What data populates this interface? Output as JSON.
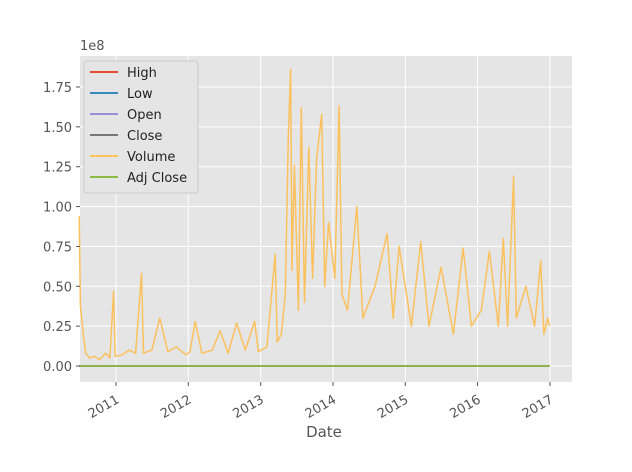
{
  "chart_data": {
    "type": "line",
    "title": "",
    "xlabel": "Date",
    "ylabel": "",
    "y_offset_label": "1e8",
    "x_range": [
      "2010-06-29",
      "2016-12-30"
    ],
    "ylim": [
      -0.1,
      1.95
    ],
    "y_scale_note": "values in units of 1e8",
    "x_ticks": [
      "2011",
      "2012",
      "2013",
      "2014",
      "2015",
      "2016",
      "2017"
    ],
    "y_ticks": [
      "0.00",
      "0.25",
      "0.50",
      "0.75",
      "1.00",
      "1.25",
      "1.50",
      "1.75"
    ],
    "grid": true,
    "legend_position": "upper-left",
    "series": [
      {
        "name": "High",
        "color": "#E24A33",
        "values": "near zero across range (price series)"
      },
      {
        "name": "Low",
        "color": "#348ABD",
        "values": "near zero across range"
      },
      {
        "name": "Open",
        "color": "#988ED5",
        "values": "near zero across range"
      },
      {
        "name": "Close",
        "color": "#777777",
        "values": "near zero across range"
      },
      {
        "name": "Volume",
        "color": "#FBC15E",
        "points": [
          [
            "2010-06-29",
            0.94
          ],
          [
            "2010-07-05",
            0.38
          ],
          [
            "2010-07-12",
            0.3
          ],
          [
            "2010-07-20",
            0.2
          ],
          [
            "2010-08-01",
            0.08
          ],
          [
            "2010-08-20",
            0.05
          ],
          [
            "2010-09-15",
            0.06
          ],
          [
            "2010-10-10",
            0.04
          ],
          [
            "2010-11-10",
            0.08
          ],
          [
            "2010-12-01",
            0.05
          ],
          [
            "2010-12-20",
            0.47
          ],
          [
            "2010-12-28",
            0.06
          ],
          [
            "2011-02-01",
            0.07
          ],
          [
            "2011-03-10",
            0.1
          ],
          [
            "2011-04-10",
            0.08
          ],
          [
            "2011-05-10",
            0.58
          ],
          [
            "2011-05-20",
            0.08
          ],
          [
            "2011-07-01",
            0.1
          ],
          [
            "2011-08-10",
            0.3
          ],
          [
            "2011-09-20",
            0.09
          ],
          [
            "2011-11-01",
            0.12
          ],
          [
            "2011-12-20",
            0.07
          ],
          [
            "2012-01-10",
            0.09
          ],
          [
            "2012-02-05",
            0.28
          ],
          [
            "2012-03-10",
            0.08
          ],
          [
            "2012-05-01",
            0.1
          ],
          [
            "2012-06-10",
            0.22
          ],
          [
            "2012-07-20",
            0.08
          ],
          [
            "2012-09-01",
            0.27
          ],
          [
            "2012-10-15",
            0.1
          ],
          [
            "2012-12-01",
            0.28
          ],
          [
            "2012-12-20",
            0.09
          ],
          [
            "2013-02-01",
            0.12
          ],
          [
            "2013-03-15",
            0.7
          ],
          [
            "2013-03-25",
            0.15
          ],
          [
            "2013-04-15",
            0.2
          ],
          [
            "2013-05-05",
            0.45
          ],
          [
            "2013-05-20",
            1.44
          ],
          [
            "2013-06-01",
            1.86
          ],
          [
            "2013-06-08",
            0.6
          ],
          [
            "2013-06-20",
            1.26
          ],
          [
            "2013-07-10",
            0.35
          ],
          [
            "2013-07-25",
            1.62
          ],
          [
            "2013-08-10",
            0.4
          ],
          [
            "2013-09-01",
            1.37
          ],
          [
            "2013-09-20",
            0.55
          ],
          [
            "2013-10-10",
            1.3
          ],
          [
            "2013-11-05",
            1.58
          ],
          [
            "2013-11-20",
            0.5
          ],
          [
            "2013-12-10",
            0.9
          ],
          [
            "2014-01-10",
            0.55
          ],
          [
            "2014-02-01",
            1.63
          ],
          [
            "2014-02-15",
            0.45
          ],
          [
            "2014-03-15",
            0.35
          ],
          [
            "2014-05-01",
            1.0
          ],
          [
            "2014-06-01",
            0.3
          ],
          [
            "2014-08-01",
            0.5
          ],
          [
            "2014-10-01",
            0.83
          ],
          [
            "2014-11-01",
            0.3
          ],
          [
            "2014-12-01",
            0.75
          ],
          [
            "2015-02-01",
            0.25
          ],
          [
            "2015-03-20",
            0.78
          ],
          [
            "2015-05-01",
            0.25
          ],
          [
            "2015-07-01",
            0.62
          ],
          [
            "2015-09-01",
            0.2
          ],
          [
            "2015-10-20",
            0.74
          ],
          [
            "2015-12-01",
            0.25
          ],
          [
            "2016-01-20",
            0.35
          ],
          [
            "2016-03-01",
            0.72
          ],
          [
            "2016-04-15",
            0.25
          ],
          [
            "2016-05-10",
            0.8
          ],
          [
            "2016-06-01",
            0.25
          ],
          [
            "2016-07-01",
            1.19
          ],
          [
            "2016-07-15",
            0.3
          ],
          [
            "2016-09-01",
            0.5
          ],
          [
            "2016-10-15",
            0.25
          ],
          [
            "2016-11-15",
            0.66
          ],
          [
            "2016-12-01",
            0.2
          ],
          [
            "2016-12-20",
            0.3
          ],
          [
            "2016-12-30",
            0.25
          ]
        ]
      },
      {
        "name": "Adj Close",
        "color": "#8EBA42",
        "values": "near zero across range"
      }
    ]
  }
}
